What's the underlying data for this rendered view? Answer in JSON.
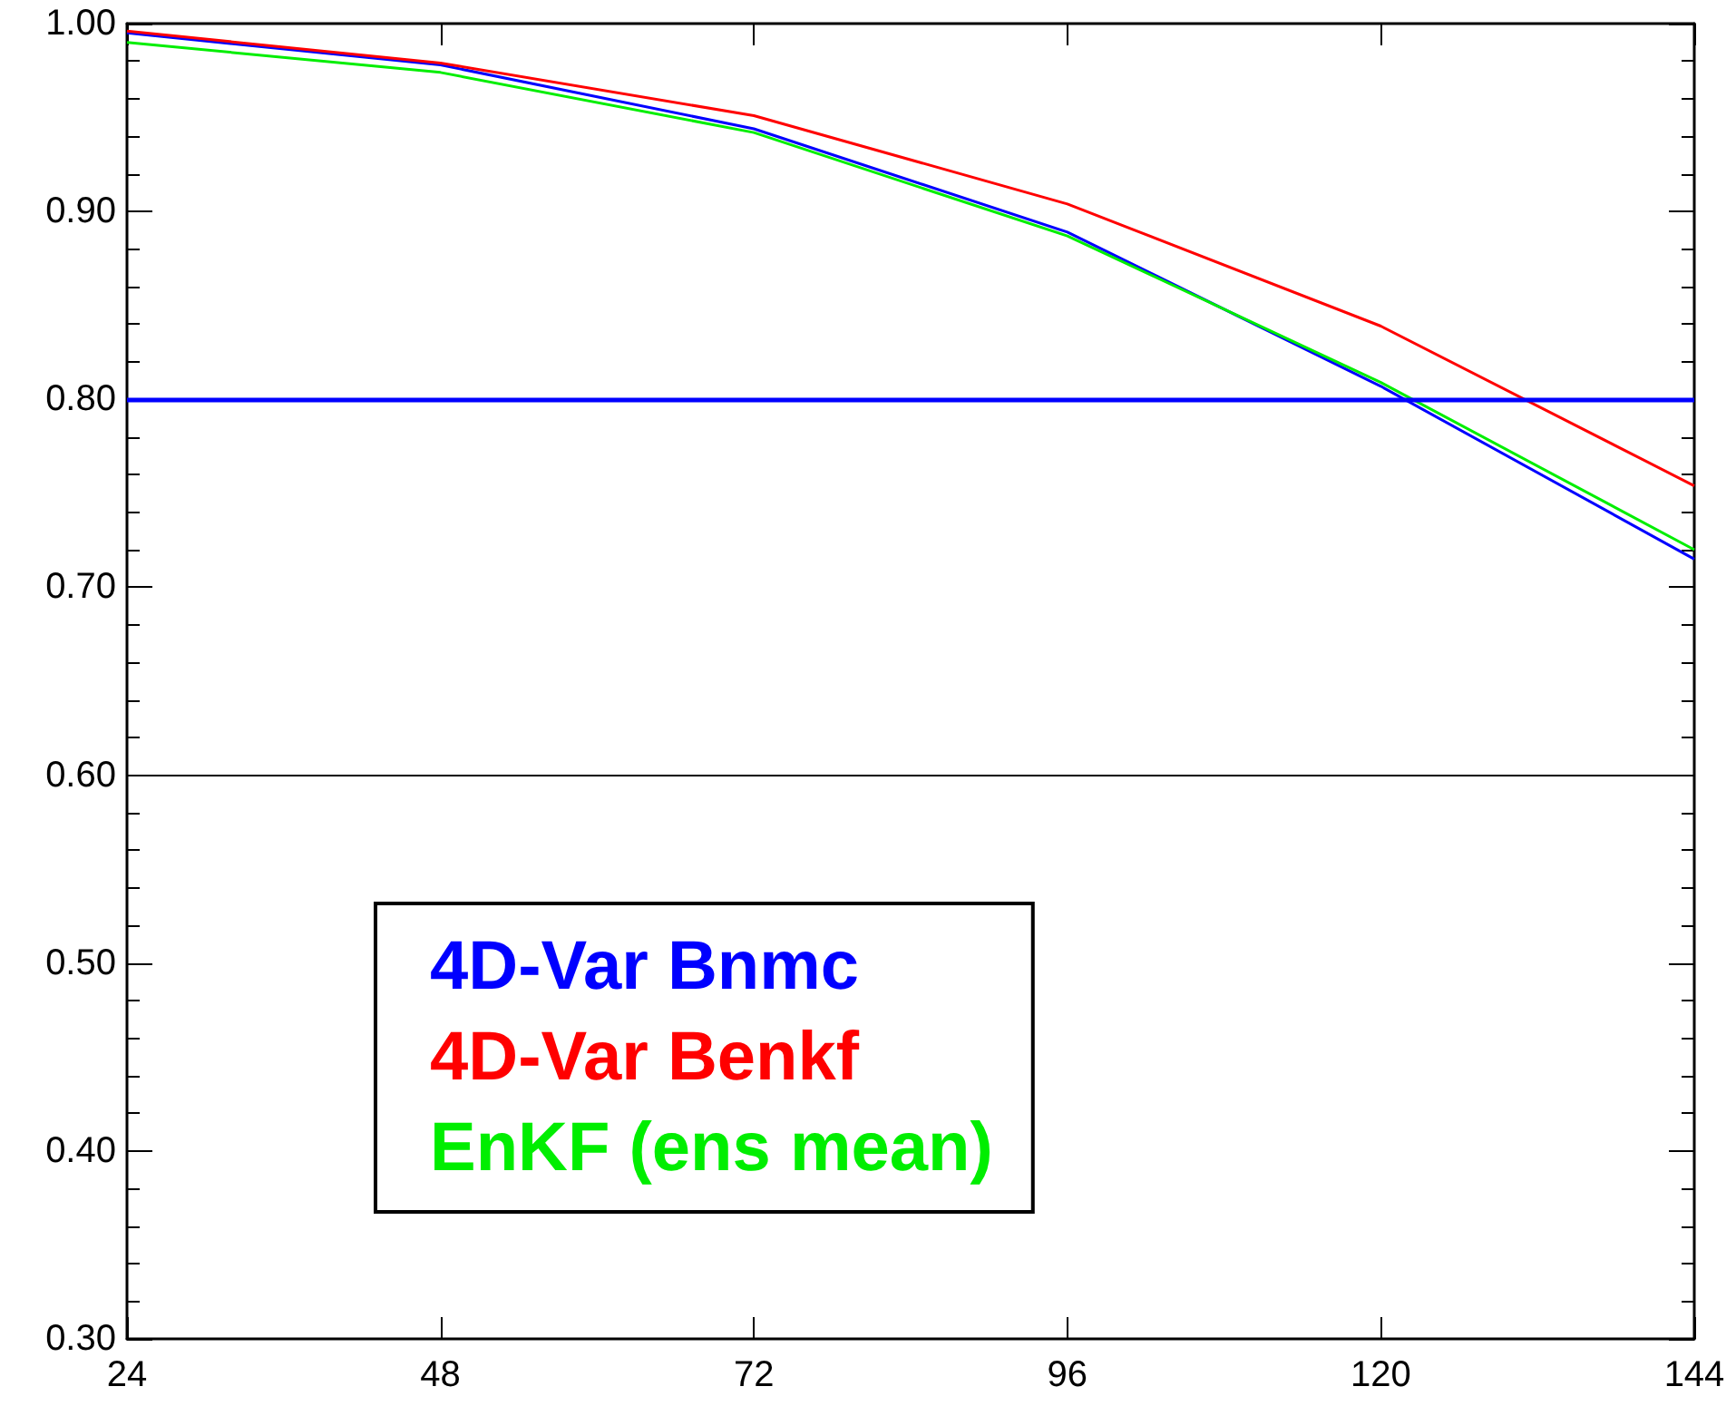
{
  "chart_data": {
    "type": "line",
    "x": [
      24,
      48,
      72,
      96,
      120,
      144
    ],
    "series": [
      {
        "name": "4D-Var Bnmc",
        "color": "#0000ff",
        "values": [
          0.995,
          0.978,
          0.944,
          0.889,
          0.807,
          0.715
        ]
      },
      {
        "name": "4D-Var Benkf",
        "color": "#ff0000",
        "values": [
          0.996,
          0.979,
          0.951,
          0.904,
          0.839,
          0.754
        ]
      },
      {
        "name": "EnKF (ens mean)",
        "color": "#00ee00",
        "values": [
          0.99,
          0.974,
          0.942,
          0.887,
          0.809,
          0.72
        ]
      }
    ],
    "xlim": [
      24,
      144
    ],
    "xticks": [
      24,
      48,
      72,
      96,
      120,
      144
    ],
    "ylim": [
      0.3,
      1.0
    ],
    "yticks": [
      {
        "value": 0.3,
        "label": "0.30"
      },
      {
        "value": 0.4,
        "label": "0.40"
      },
      {
        "value": 0.5,
        "label": "0.50"
      },
      {
        "value": 0.6,
        "label": "0.60"
      },
      {
        "value": 0.7,
        "label": "0.70"
      },
      {
        "value": 0.8,
        "label": "0.80"
      },
      {
        "value": 0.9,
        "label": "0.90"
      },
      {
        "value": 1.0,
        "label": "1.00"
      }
    ],
    "ref_lines": [
      {
        "axis": "y",
        "value": 0.8,
        "color": "#0000ff"
      },
      {
        "axis": "y",
        "value": 0.6,
        "color": "#000000"
      }
    ],
    "grid": false,
    "legend": "bottom left",
    "marker": "none",
    "line_style": "solid"
  }
}
